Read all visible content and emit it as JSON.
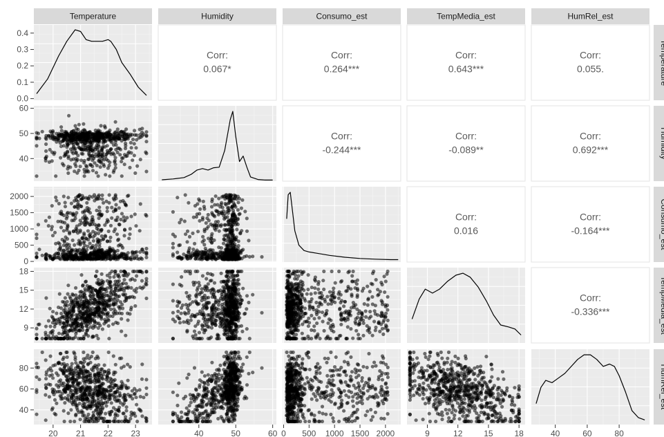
{
  "chart_data": {
    "type": "scatter",
    "variables": [
      "Temperature",
      "Humidity",
      "Consumo_est",
      "TempMedia_est",
      "HumRel_est"
    ],
    "correlations": [
      {
        "row": 0,
        "col": 1,
        "label": "Corr:",
        "value": "0.067*"
      },
      {
        "row": 0,
        "col": 2,
        "label": "Corr:",
        "value": "0.264***"
      },
      {
        "row": 0,
        "col": 3,
        "label": "Corr:",
        "value": "0.643***"
      },
      {
        "row": 0,
        "col": 4,
        "label": "Corr:",
        "value": "0.055."
      },
      {
        "row": 1,
        "col": 2,
        "label": "Corr:",
        "value": "-0.244***"
      },
      {
        "row": 1,
        "col": 3,
        "label": "Corr:",
        "value": "-0.089**"
      },
      {
        "row": 1,
        "col": 4,
        "label": "Corr:",
        "value": "0.692***"
      },
      {
        "row": 2,
        "col": 3,
        "label": "Corr:",
        "value": "0.016"
      },
      {
        "row": 2,
        "col": 4,
        "label": "Corr:",
        "value": "-0.164***"
      },
      {
        "row": 3,
        "col": 4,
        "label": "Corr:",
        "value": "-0.336***"
      }
    ],
    "x_axes": [
      {
        "range": [
          19.3,
          23.6
        ],
        "ticks": [
          20,
          21,
          22,
          23
        ],
        "tick_labels": [
          "20",
          "21",
          "22",
          "23"
        ]
      },
      {
        "range": [
          29,
          61
        ],
        "ticks": [
          40,
          50,
          60
        ],
        "tick_labels": [
          "40",
          "50",
          "60"
        ]
      },
      {
        "range": [
          -20,
          2300
        ],
        "ticks": [
          0,
          500,
          1000,
          1500,
          2000
        ],
        "tick_labels": [
          "0",
          "500",
          "1000",
          "1500",
          "2000"
        ]
      },
      {
        "range": [
          7,
          18.6
        ],
        "ticks": [
          9,
          12,
          15,
          18
        ],
        "tick_labels": [
          "9",
          "12",
          "15",
          "18"
        ]
      },
      {
        "range": [
          25,
          99
        ],
        "ticks": [
          40,
          60,
          80
        ],
        "tick_labels": [
          "40",
          "60",
          "80"
        ]
      }
    ],
    "y_axes": [
      {
        "range": [
          -0.01,
          0.45
        ],
        "ticks": [
          0.0,
          0.1,
          0.2,
          0.3,
          0.4
        ],
        "tick_labels": [
          "0.0",
          "0.1",
          "0.2",
          "0.3",
          "0.4"
        ]
      },
      {
        "range": [
          31,
          61
        ],
        "ticks": [
          40,
          50,
          60
        ],
        "tick_labels": [
          "40",
          "50",
          "60"
        ]
      },
      {
        "range": [
          -20,
          2300
        ],
        "ticks": [
          0,
          500,
          1000,
          1500,
          2000
        ],
        "tick_labels": [
          "0",
          "500",
          "1000",
          "1500",
          "2000"
        ]
      },
      {
        "range": [
          6.6,
          18.6
        ],
        "ticks": [
          9,
          12,
          15,
          18
        ],
        "tick_labels": [
          "9",
          "12",
          "15",
          "18"
        ]
      },
      {
        "range": [
          26,
          98
        ],
        "ticks": [
          40,
          60,
          80
        ],
        "tick_labels": [
          "40",
          "60",
          "80"
        ]
      }
    ],
    "densities": [
      {
        "var": "Temperature",
        "x": [
          19.4,
          19.8,
          20.2,
          20.5,
          20.8,
          21.0,
          21.2,
          21.4,
          21.6,
          21.8,
          22.0,
          22.1,
          22.3,
          22.5,
          22.8,
          23.1,
          23.4
        ],
        "y": [
          0.03,
          0.12,
          0.26,
          0.35,
          0.42,
          0.41,
          0.36,
          0.35,
          0.35,
          0.35,
          0.36,
          0.35,
          0.3,
          0.22,
          0.15,
          0.07,
          0.02
        ]
      },
      {
        "var": "Humidity",
        "x": [
          30,
          33,
          36,
          38,
          39.5,
          41,
          42.5,
          44,
          45.5,
          47,
          48.5,
          49.2,
          50,
          51,
          52,
          53,
          54,
          56,
          58,
          60
        ],
        "y": [
          0.005,
          0.008,
          0.013,
          0.025,
          0.04,
          0.045,
          0.04,
          0.048,
          0.05,
          0.11,
          0.22,
          0.25,
          0.16,
          0.07,
          0.09,
          0.05,
          0.015,
          0.006,
          0.004,
          0.004
        ]
      },
      {
        "var": "Consumo_est",
        "x": [
          60,
          90,
          130,
          170,
          220,
          300,
          400,
          500,
          700,
          900,
          1200,
          1500,
          1800,
          2100,
          2250
        ],
        "y": [
          0.0018,
          0.0028,
          0.0029,
          0.0022,
          0.0013,
          0.0007,
          0.00048,
          0.00042,
          0.00035,
          0.00028,
          0.0002,
          0.00015,
          0.00012,
          0.0001,
          0.0001
        ]
      },
      {
        "var": "TempMedia_est",
        "x": [
          7.5,
          8.2,
          8.8,
          9.5,
          10.2,
          11.0,
          11.8,
          12.5,
          13.2,
          14.0,
          14.8,
          15.5,
          16.2,
          17.0,
          17.6,
          18.2
        ],
        "y": [
          0.06,
          0.11,
          0.135,
          0.125,
          0.135,
          0.155,
          0.17,
          0.175,
          0.165,
          0.14,
          0.105,
          0.07,
          0.045,
          0.04,
          0.035,
          0.02
        ]
      },
      {
        "var": "HumRel_est",
        "x": [
          28,
          31,
          34,
          38,
          42,
          46,
          50,
          54,
          58,
          62,
          66,
          70,
          74,
          77,
          80,
          84,
          88,
          92,
          96
        ],
        "y": [
          0.009,
          0.016,
          0.019,
          0.018,
          0.02,
          0.022,
          0.025,
          0.028,
          0.03,
          0.03,
          0.028,
          0.025,
          0.026,
          0.025,
          0.021,
          0.014,
          0.006,
          0.003,
          0.002
        ]
      }
    ]
  }
}
